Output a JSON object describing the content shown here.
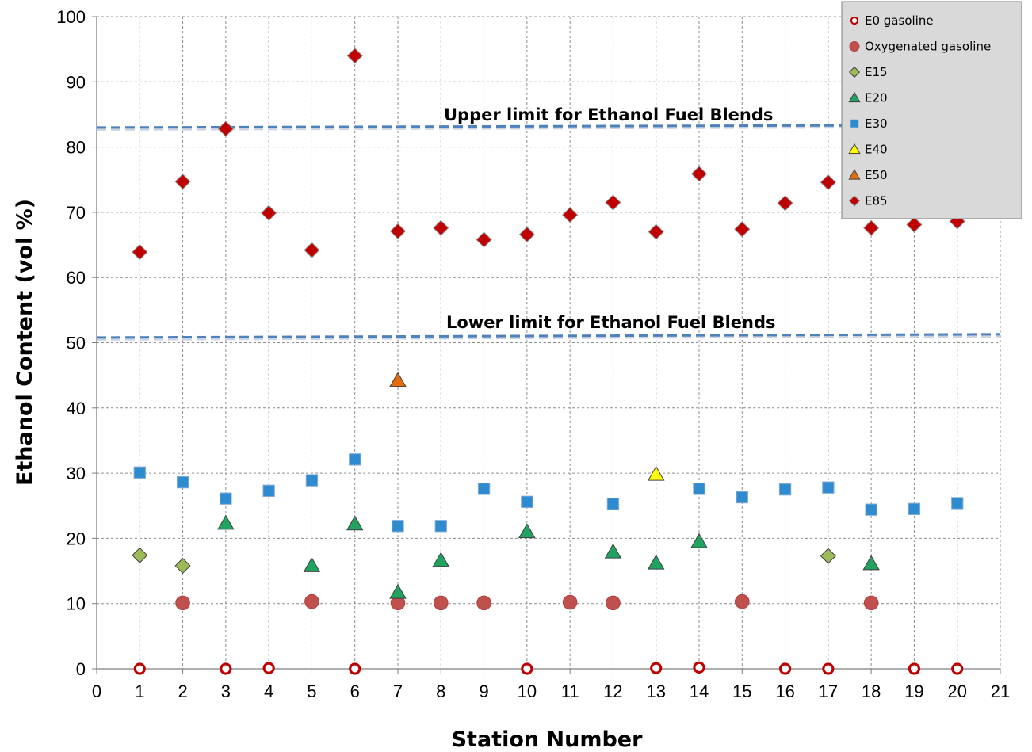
{
  "chart_data": {
    "type": "scatter",
    "xlabel": "Station Number",
    "ylabel": "Ethanol Content (vol %)",
    "xlim": [
      0,
      21
    ],
    "ylim": [
      0,
      100
    ],
    "xticks": [
      0,
      1,
      2,
      3,
      4,
      5,
      6,
      7,
      8,
      9,
      10,
      11,
      12,
      13,
      14,
      15,
      16,
      17,
      18,
      19,
      20,
      21
    ],
    "yticks": [
      0,
      10,
      20,
      30,
      40,
      50,
      60,
      70,
      80,
      90,
      100
    ],
    "grid": true,
    "legend_position": "top-right",
    "annotations": [
      {
        "text": "Upper limit for Ethanol Fuel Blends",
        "y": 83.2
      },
      {
        "text": "Lower limit for Ethanol Fuel Blends",
        "y": 51
      }
    ],
    "reference_lines": [
      {
        "y_start": 83.0,
        "y_end": 83.4,
        "color": "#4f81bd",
        "style": "dashed"
      },
      {
        "y_start": 50.8,
        "y_end": 51.3,
        "color": "#4f81bd",
        "style": "dashed"
      }
    ],
    "series": [
      {
        "name": "E0 gasoline",
        "marker": "open-circle",
        "color": "#c00000",
        "points": [
          [
            1,
            0
          ],
          [
            3,
            0
          ],
          [
            4,
            0.1
          ],
          [
            6,
            0
          ],
          [
            10,
            0
          ],
          [
            13,
            0.1
          ],
          [
            14,
            0.2
          ],
          [
            16,
            0
          ],
          [
            17,
            0
          ],
          [
            19,
            0
          ],
          [
            20,
            0
          ]
        ]
      },
      {
        "name": "Oxygenated gasoline",
        "marker": "circle",
        "color": "#c0504d",
        "points": [
          [
            2,
            10.1
          ],
          [
            5,
            10.3
          ],
          [
            7,
            10.1
          ],
          [
            8,
            10.1
          ],
          [
            9,
            10.1
          ],
          [
            11,
            10.2
          ],
          [
            12,
            10.1
          ],
          [
            15,
            10.3
          ],
          [
            18,
            10.1
          ]
        ]
      },
      {
        "name": "E15",
        "marker": "diamond",
        "color": "#9bbb59",
        "points": [
          [
            1,
            17.4
          ],
          [
            2,
            15.8
          ],
          [
            17,
            17.3
          ]
        ]
      },
      {
        "name": "E20",
        "marker": "triangle",
        "color": "#1fa35f",
        "points": [
          [
            3,
            22.3
          ],
          [
            5,
            15.8
          ],
          [
            6,
            22.2
          ],
          [
            7,
            11.7
          ],
          [
            8,
            16.6
          ],
          [
            10,
            21.0
          ],
          [
            12,
            17.9
          ],
          [
            13,
            16.2
          ],
          [
            14,
            19.5
          ],
          [
            18,
            16.1
          ]
        ]
      },
      {
        "name": "E30",
        "marker": "square",
        "color": "#2e8bd0",
        "points": [
          [
            1,
            30.1
          ],
          [
            2,
            28.6
          ],
          [
            3,
            26.1
          ],
          [
            4,
            27.3
          ],
          [
            5,
            28.9
          ],
          [
            6,
            32.1
          ],
          [
            7,
            21.9
          ],
          [
            8,
            21.9
          ],
          [
            9,
            27.6
          ],
          [
            10,
            25.6
          ],
          [
            12,
            25.3
          ],
          [
            14,
            27.6
          ],
          [
            15,
            26.3
          ],
          [
            16,
            27.5
          ],
          [
            17,
            27.8
          ],
          [
            18,
            24.4
          ],
          [
            19,
            24.5
          ],
          [
            20,
            25.4
          ]
        ]
      },
      {
        "name": "E40",
        "marker": "triangle",
        "color": "#ffff00",
        "points": [
          [
            13,
            29.8
          ]
        ]
      },
      {
        "name": "E50",
        "marker": "triangle",
        "color": "#e46c0a",
        "points": [
          [
            7,
            44.2
          ]
        ]
      },
      {
        "name": "E85",
        "marker": "diamond",
        "color": "#c00000",
        "points": [
          [
            1,
            63.9
          ],
          [
            2,
            74.7
          ],
          [
            3,
            82.8
          ],
          [
            4,
            69.9
          ],
          [
            5,
            64.2
          ],
          [
            6,
            94.0
          ],
          [
            7,
            67.1
          ],
          [
            8,
            67.6
          ],
          [
            9,
            65.8
          ],
          [
            10,
            66.6
          ],
          [
            11,
            69.6
          ],
          [
            12,
            71.5
          ],
          [
            13,
            67.0
          ],
          [
            14,
            75.9
          ],
          [
            15,
            67.4
          ],
          [
            16,
            71.4
          ],
          [
            17,
            74.6
          ],
          [
            18,
            67.6
          ],
          [
            19,
            68.1
          ],
          [
            20,
            68.6
          ]
        ]
      }
    ]
  }
}
